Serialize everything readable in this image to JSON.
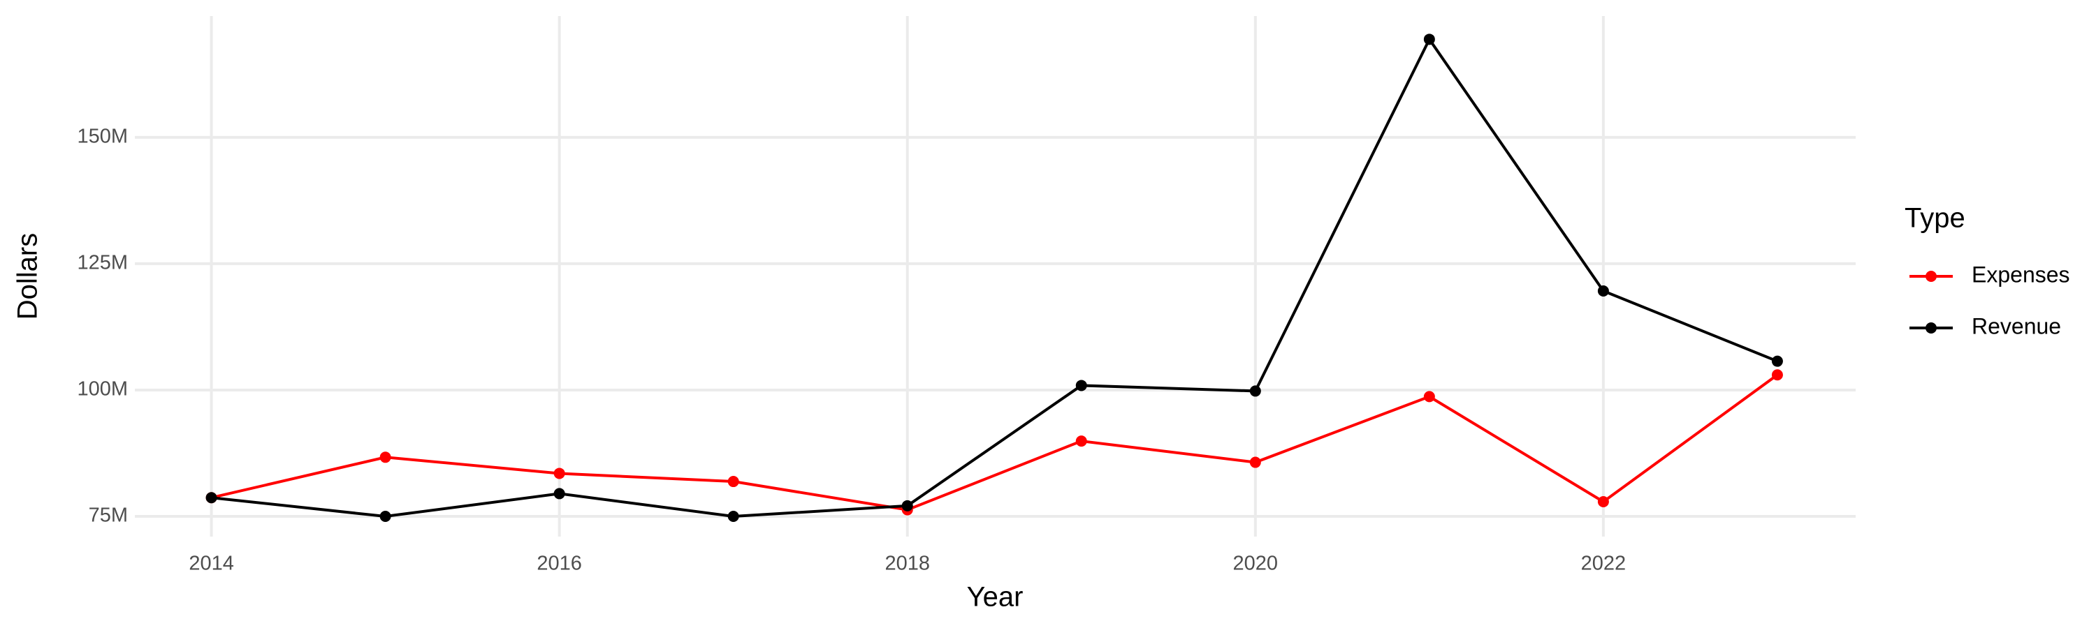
{
  "chart_data": {
    "type": "line",
    "x_label": "Year",
    "y_label": "Dollars",
    "legend_title": "Type",
    "legend_position": "right",
    "grid": true,
    "x": [
      2014,
      2015,
      2016,
      2017,
      2018,
      2019,
      2020,
      2021,
      2022,
      2023
    ],
    "xlim": [
      2013.56,
      2023.45
    ],
    "xticks": [
      2014,
      2016,
      2018,
      2020,
      2022
    ],
    "ylim": [
      71000000,
      174000000
    ],
    "yticks": [
      {
        "value": 75000000,
        "label": "75M"
      },
      {
        "value": 100000000,
        "label": "100M"
      },
      {
        "value": 125000000,
        "label": "125M"
      },
      {
        "value": 150000000,
        "label": "150M"
      }
    ],
    "series": [
      {
        "name": "Expenses",
        "color": "#ff0000",
        "values": [
          78700000,
          86700000,
          83500000,
          81900000,
          76300000,
          89900000,
          85700000,
          98700000,
          77900000,
          103000000
        ]
      },
      {
        "name": "Revenue",
        "color": "#000000",
        "values": [
          78700000,
          75000000,
          79500000,
          75000000,
          77100000,
          100900000,
          99800000,
          169400000,
          119600000,
          105700000
        ]
      }
    ]
  }
}
